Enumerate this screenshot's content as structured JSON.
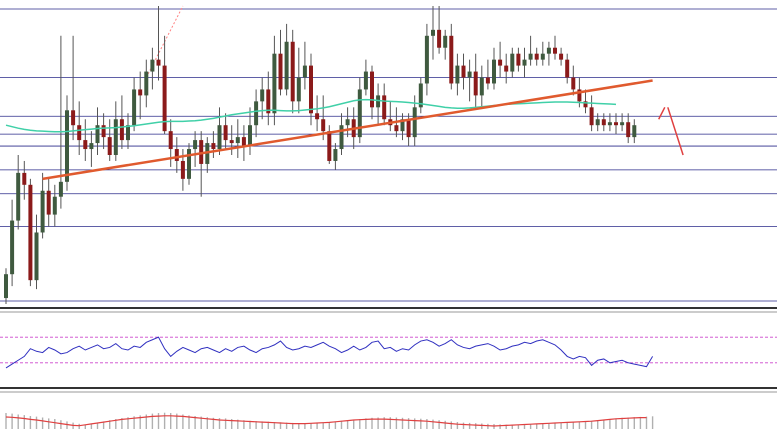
{
  "chart_data": [
    {
      "type": "candlestick",
      "panel": "price",
      "title": "",
      "xlabel": "",
      "ylabel": "",
      "ylim": [
        0,
        100
      ],
      "grid": true,
      "legend": "none",
      "colors": {
        "up": "#3f5a3f",
        "down": "#8b1a1a",
        "wick": "#555555",
        "ma": "#40d0a8",
        "trendline": "#e05a2e",
        "forecast": "#e04040",
        "gridline": "#2a2a8a",
        "projection": "#ff8080"
      },
      "horizontal_levels": [
        99,
        76,
        63,
        57,
        53,
        45,
        37,
        26,
        1
      ],
      "candles": [
        {
          "o": 2,
          "h": 12,
          "l": 0,
          "c": 10
        },
        {
          "o": 10,
          "h": 35,
          "l": 6,
          "c": 28
        },
        {
          "o": 28,
          "h": 50,
          "l": 25,
          "c": 44
        },
        {
          "o": 44,
          "h": 48,
          "l": 35,
          "c": 40
        },
        {
          "o": 40,
          "h": 42,
          "l": 6,
          "c": 8
        },
        {
          "o": 8,
          "h": 30,
          "l": 5,
          "c": 24
        },
        {
          "o": 24,
          "h": 44,
          "l": 22,
          "c": 38
        },
        {
          "o": 38,
          "h": 42,
          "l": 26,
          "c": 30
        },
        {
          "o": 30,
          "h": 40,
          "l": 26,
          "c": 36
        },
        {
          "o": 36,
          "h": 90,
          "l": 32,
          "c": 41
        },
        {
          "o": 41,
          "h": 70,
          "l": 38,
          "c": 65
        },
        {
          "o": 65,
          "h": 90,
          "l": 55,
          "c": 60
        },
        {
          "o": 60,
          "h": 68,
          "l": 50,
          "c": 55
        },
        {
          "o": 55,
          "h": 62,
          "l": 48,
          "c": 52
        },
        {
          "o": 52,
          "h": 58,
          "l": 46,
          "c": 54
        },
        {
          "o": 54,
          "h": 66,
          "l": 50,
          "c": 60
        },
        {
          "o": 60,
          "h": 64,
          "l": 52,
          "c": 56
        },
        {
          "o": 56,
          "h": 62,
          "l": 48,
          "c": 50
        },
        {
          "o": 50,
          "h": 68,
          "l": 48,
          "c": 62
        },
        {
          "o": 62,
          "h": 70,
          "l": 52,
          "c": 55
        },
        {
          "o": 55,
          "h": 64,
          "l": 52,
          "c": 60
        },
        {
          "o": 60,
          "h": 76,
          "l": 58,
          "c": 72
        },
        {
          "o": 72,
          "h": 78,
          "l": 62,
          "c": 70
        },
        {
          "o": 70,
          "h": 82,
          "l": 66,
          "c": 78
        },
        {
          "o": 78,
          "h": 86,
          "l": 72,
          "c": 82
        },
        {
          "o": 82,
          "h": 100,
          "l": 75,
          "c": 80
        },
        {
          "o": 80,
          "h": 90,
          "l": 57,
          "c": 58
        },
        {
          "o": 58,
          "h": 62,
          "l": 46,
          "c": 52
        },
        {
          "o": 52,
          "h": 56,
          "l": 44,
          "c": 48
        },
        {
          "o": 48,
          "h": 52,
          "l": 38,
          "c": 42
        },
        {
          "o": 42,
          "h": 54,
          "l": 40,
          "c": 52
        },
        {
          "o": 52,
          "h": 58,
          "l": 46,
          "c": 55
        },
        {
          "o": 55,
          "h": 58,
          "l": 36,
          "c": 47
        },
        {
          "o": 47,
          "h": 56,
          "l": 44,
          "c": 54
        },
        {
          "o": 54,
          "h": 58,
          "l": 49,
          "c": 52
        },
        {
          "o": 52,
          "h": 66,
          "l": 50,
          "c": 60
        },
        {
          "o": 60,
          "h": 64,
          "l": 52,
          "c": 55
        },
        {
          "o": 55,
          "h": 60,
          "l": 50,
          "c": 54
        },
        {
          "o": 54,
          "h": 62,
          "l": 49,
          "c": 56
        },
        {
          "o": 56,
          "h": 60,
          "l": 48,
          "c": 53
        },
        {
          "o": 53,
          "h": 66,
          "l": 50,
          "c": 60
        },
        {
          "o": 60,
          "h": 72,
          "l": 56,
          "c": 68
        },
        {
          "o": 68,
          "h": 76,
          "l": 62,
          "c": 72
        },
        {
          "o": 72,
          "h": 78,
          "l": 60,
          "c": 64
        },
        {
          "o": 64,
          "h": 90,
          "l": 60,
          "c": 84
        },
        {
          "o": 84,
          "h": 92,
          "l": 70,
          "c": 72
        },
        {
          "o": 72,
          "h": 94,
          "l": 70,
          "c": 88
        },
        {
          "o": 88,
          "h": 92,
          "l": 64,
          "c": 68
        },
        {
          "o": 68,
          "h": 86,
          "l": 64,
          "c": 76
        },
        {
          "o": 76,
          "h": 88,
          "l": 72,
          "c": 80
        },
        {
          "o": 80,
          "h": 84,
          "l": 60,
          "c": 64
        },
        {
          "o": 64,
          "h": 70,
          "l": 58,
          "c": 62
        },
        {
          "o": 62,
          "h": 70,
          "l": 55,
          "c": 58
        },
        {
          "o": 58,
          "h": 60,
          "l": 47,
          "c": 48
        },
        {
          "o": 48,
          "h": 54,
          "l": 45,
          "c": 52
        },
        {
          "o": 52,
          "h": 64,
          "l": 50,
          "c": 60
        },
        {
          "o": 60,
          "h": 66,
          "l": 56,
          "c": 62
        },
        {
          "o": 62,
          "h": 66,
          "l": 52,
          "c": 56
        },
        {
          "o": 56,
          "h": 76,
          "l": 54,
          "c": 72
        },
        {
          "o": 72,
          "h": 82,
          "l": 70,
          "c": 78
        },
        {
          "o": 78,
          "h": 80,
          "l": 62,
          "c": 66
        },
        {
          "o": 66,
          "h": 74,
          "l": 60,
          "c": 70
        },
        {
          "o": 70,
          "h": 74,
          "l": 60,
          "c": 62
        },
        {
          "o": 62,
          "h": 68,
          "l": 58,
          "c": 60
        },
        {
          "o": 60,
          "h": 66,
          "l": 56,
          "c": 58
        },
        {
          "o": 58,
          "h": 64,
          "l": 55,
          "c": 62
        },
        {
          "o": 62,
          "h": 64,
          "l": 53,
          "c": 56
        },
        {
          "o": 56,
          "h": 70,
          "l": 53,
          "c": 66
        },
        {
          "o": 66,
          "h": 76,
          "l": 64,
          "c": 74
        },
        {
          "o": 74,
          "h": 94,
          "l": 70,
          "c": 90
        },
        {
          "o": 90,
          "h": 100,
          "l": 82,
          "c": 92
        },
        {
          "o": 92,
          "h": 100,
          "l": 84,
          "c": 86
        },
        {
          "o": 86,
          "h": 92,
          "l": 82,
          "c": 90
        },
        {
          "o": 90,
          "h": 94,
          "l": 72,
          "c": 74
        },
        {
          "o": 74,
          "h": 84,
          "l": 70,
          "c": 80
        },
        {
          "o": 80,
          "h": 84,
          "l": 72,
          "c": 76
        },
        {
          "o": 76,
          "h": 82,
          "l": 68,
          "c": 78
        },
        {
          "o": 78,
          "h": 84,
          "l": 66,
          "c": 70
        },
        {
          "o": 70,
          "h": 80,
          "l": 66,
          "c": 76
        },
        {
          "o": 76,
          "h": 82,
          "l": 72,
          "c": 74
        },
        {
          "o": 74,
          "h": 86,
          "l": 72,
          "c": 82
        },
        {
          "o": 82,
          "h": 88,
          "l": 76,
          "c": 80
        },
        {
          "o": 80,
          "h": 84,
          "l": 74,
          "c": 78
        },
        {
          "o": 78,
          "h": 86,
          "l": 76,
          "c": 84
        },
        {
          "o": 84,
          "h": 86,
          "l": 78,
          "c": 80
        },
        {
          "o": 80,
          "h": 86,
          "l": 76,
          "c": 82
        },
        {
          "o": 82,
          "h": 90,
          "l": 80,
          "c": 84
        },
        {
          "o": 84,
          "h": 86,
          "l": 80,
          "c": 82
        },
        {
          "o": 82,
          "h": 88,
          "l": 80,
          "c": 84
        },
        {
          "o": 84,
          "h": 88,
          "l": 80,
          "c": 86
        },
        {
          "o": 86,
          "h": 90,
          "l": 82,
          "c": 84
        },
        {
          "o": 84,
          "h": 86,
          "l": 80,
          "c": 82
        },
        {
          "o": 82,
          "h": 84,
          "l": 74,
          "c": 76
        },
        {
          "o": 76,
          "h": 80,
          "l": 70,
          "c": 72
        },
        {
          "o": 72,
          "h": 76,
          "l": 66,
          "c": 68
        },
        {
          "o": 68,
          "h": 72,
          "l": 64,
          "c": 66
        },
        {
          "o": 66,
          "h": 70,
          "l": 58,
          "c": 60
        },
        {
          "o": 60,
          "h": 64,
          "l": 58,
          "c": 62
        },
        {
          "o": 62,
          "h": 64,
          "l": 58,
          "c": 60
        },
        {
          "o": 60,
          "h": 64,
          "l": 58,
          "c": 61
        },
        {
          "o": 61,
          "h": 64,
          "l": 57,
          "c": 60
        },
        {
          "o": 60,
          "h": 64,
          "l": 58,
          "c": 61
        },
        {
          "o": 61,
          "h": 64,
          "l": 54,
          "c": 56
        },
        {
          "o": 56,
          "h": 62,
          "l": 54,
          "c": 60
        }
      ],
      "moving_average": [
        60,
        59.5,
        59,
        58.6,
        58.3,
        58.1,
        58,
        57.9,
        57.8,
        57.8,
        57.9,
        58.1,
        58.3,
        58.5,
        58.7,
        58.9,
        59,
        59.1,
        59.2,
        59.4,
        59.6,
        59.8,
        60.1,
        60.4,
        60.7,
        61,
        61.2,
        61.3,
        61.3,
        61.3,
        61.4,
        61.5,
        61.7,
        62,
        62.3,
        62.7,
        63.1,
        63.5,
        63.8,
        64.1,
        64.4,
        64.7,
        64.9,
        65,
        65,
        64.9,
        64.8,
        64.8,
        64.9,
        65.1,
        65.3,
        65.5,
        65.8,
        66.2,
        66.7,
        67.2,
        67.7,
        68.2,
        68.5,
        68.6,
        68.5,
        68.3,
        68.1,
        68,
        67.9,
        67.8,
        67.6,
        67.4,
        67.2,
        66.9,
        66.6,
        66.3,
        66,
        65.8,
        65.7,
        65.7,
        65.8,
        66,
        66.2,
        66.4,
        66.6,
        66.8,
        67,
        67.1,
        67.2,
        67.3,
        67.4,
        67.5,
        67.6,
        67.7,
        67.8,
        67.8,
        67.8,
        67.7,
        67.6,
        67.5,
        67.4,
        67.3,
        67.2,
        67.1,
        67
      ],
      "trendline": {
        "from": {
          "index": 6,
          "value": 42
        },
        "to": {
          "index": 106,
          "value": 75
        }
      },
      "forecast_arrow": {
        "from": {
          "index": 107,
          "value": 62
        },
        "peak": {
          "index": 108,
          "value": 66
        },
        "to": {
          "index": 111,
          "value": 50
        }
      }
    },
    {
      "type": "line",
      "panel": "oscillator",
      "title": "",
      "ylim": [
        0,
        100
      ],
      "grid": false,
      "levels": [
        70,
        30
      ],
      "colors": {
        "line": "#3030c0",
        "level": "#cc44cc"
      },
      "values": [
        22,
        28,
        34,
        40,
        52,
        48,
        46,
        54,
        50,
        44,
        46,
        52,
        56,
        50,
        54,
        58,
        52,
        54,
        60,
        52,
        50,
        56,
        54,
        62,
        66,
        70,
        52,
        40,
        48,
        54,
        50,
        46,
        52,
        54,
        50,
        46,
        52,
        48,
        54,
        56,
        50,
        46,
        52,
        54,
        58,
        64,
        54,
        50,
        52,
        56,
        54,
        58,
        62,
        56,
        52,
        46,
        50,
        56,
        50,
        54,
        62,
        64,
        52,
        54,
        48,
        52,
        50,
        58,
        64,
        66,
        62,
        56,
        60,
        66,
        58,
        54,
        52,
        56,
        58,
        60,
        56,
        50,
        52,
        56,
        58,
        62,
        60,
        64,
        66,
        62,
        58,
        50,
        40,
        36,
        40,
        38,
        26,
        34,
        36,
        30,
        32,
        34,
        30,
        28,
        26,
        24,
        40
      ]
    },
    {
      "type": "histogram",
      "panel": "macd",
      "title": "",
      "ylim": [
        -10,
        10
      ],
      "grid": false,
      "colors": {
        "bars": "#b0b0b0",
        "signal": "#e04040"
      },
      "values": [
        -4,
        -3.8,
        -3.5,
        -3.3,
        -3,
        -2.8,
        -2.5,
        -2.2,
        -2,
        -1.6,
        -1.2,
        -0.8,
        -0.4,
        0,
        0.4,
        0.8,
        1.2,
        1.6,
        2,
        2.3,
        2.6,
        2.9,
        3.2,
        3.5,
        3.8,
        4,
        4.1,
        4,
        3.8,
        3.5,
        3.2,
        3,
        2.8,
        2.6,
        2.4,
        2.3,
        2.2,
        2,
        1.8,
        1.6,
        1.4,
        1.3,
        1.2,
        1.1,
        1,
        0.9,
        0.8,
        0.7,
        0.6,
        0.5,
        0.5,
        0.6,
        0.8,
        1,
        1.2,
        1.4,
        1.6,
        1.8,
        2,
        2.2,
        2.4,
        2.5,
        2.6,
        2.6,
        2.5,
        2.4,
        2.3,
        2.2,
        2.1,
        2,
        1.8,
        1.6,
        1.4,
        1.2,
        1,
        0.8,
        0.7,
        0.6,
        0.5,
        0.4,
        0.3,
        0.2,
        0.1,
        0,
        -0.1,
        -0.2,
        -0.3,
        -0.4,
        -0.5,
        -0.6,
        -0.7,
        -0.8,
        -0.9,
        -1,
        -1.1,
        -1.2,
        -1.4,
        -1.6,
        -1.8,
        -2,
        -2.2,
        -2.4,
        -2.5,
        -2.6,
        -2.7,
        -2.8,
        -2.9
      ],
      "signal": [
        -3,
        -2.9,
        -2.7,
        -2.5,
        -2.2,
        -2,
        -1.7,
        -1.4,
        -1.1,
        -0.8,
        -0.5,
        -0.2,
        0.1,
        0.4,
        0.7,
        1,
        1.3,
        1.6,
        1.9,
        2.2,
        2.4,
        2.6,
        2.8,
        3,
        3.2,
        3.3,
        3.4,
        3.4,
        3.3,
        3.2,
        3,
        2.8,
        2.6,
        2.4,
        2.2,
        2,
        1.9,
        1.8,
        1.7,
        1.6,
        1.5,
        1.4,
        1.3,
        1.2,
        1.1,
        1,
        0.9,
        0.8,
        0.8,
        0.8,
        0.9,
        1,
        1.1,
        1.2,
        1.4,
        1.6,
        1.8,
        2,
        2.1,
        2.2,
        2.3,
        2.3,
        2.3,
        2.2,
        2.1,
        2,
        1.9,
        1.8,
        1.7,
        1.6,
        1.4,
        1.2,
        1,
        0.8,
        0.6,
        0.5,
        0.4,
        0.3,
        0.2,
        0.1,
        0,
        -0.1,
        -0.2,
        -0.3,
        -0.4,
        -0.5,
        -0.6,
        -0.7,
        -0.8,
        -0.9,
        -1,
        -1.1,
        -1.2,
        -1.3,
        -1.4,
        -1.5,
        -1.6,
        -1.8,
        -2,
        -2.2,
        -2.4,
        -2.5,
        -2.6,
        -2.7,
        -2.8,
        -2.8
      ]
    }
  ]
}
